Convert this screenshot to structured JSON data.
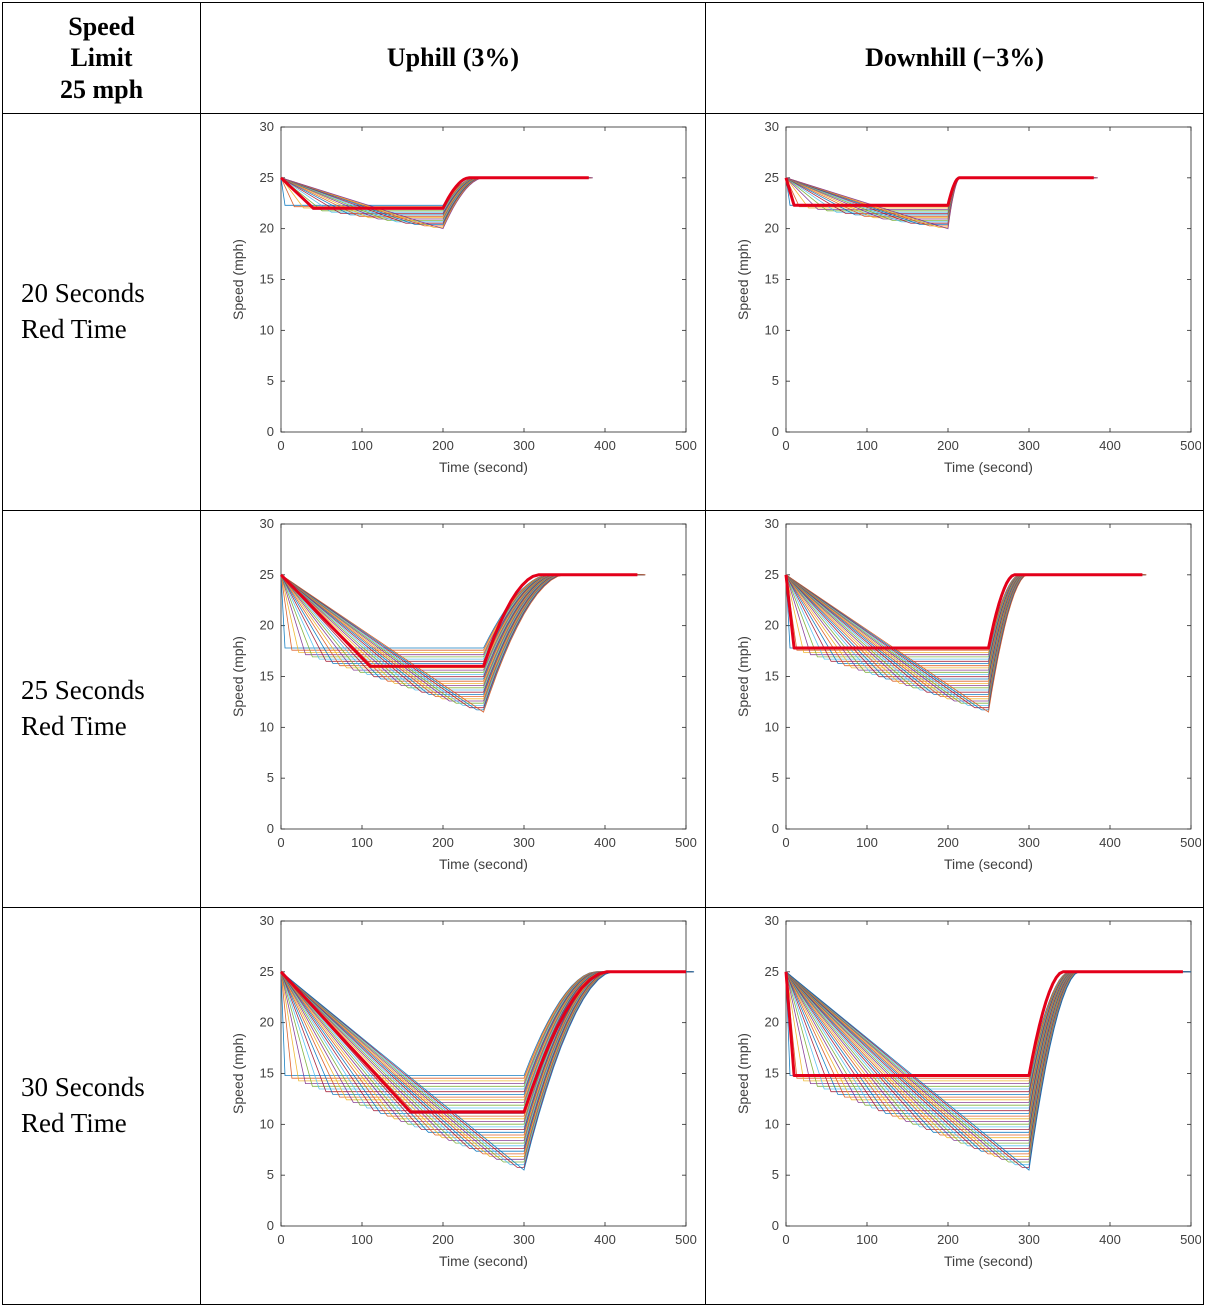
{
  "header": {
    "corner_lines": [
      "Speed",
      "Limit",
      "25 mph"
    ],
    "col_uphill": "Uphill (3%)",
    "col_downhill": "Downhill (−3%)"
  },
  "rows": [
    {
      "label_line1": "20 Seconds",
      "label_line2": "Red Time"
    },
    {
      "label_line1": "25 Seconds",
      "label_line2": "Red Time"
    },
    {
      "label_line1": "30 Seconds",
      "label_line2": "Red Time"
    }
  ],
  "colors": {
    "highlight": "#e3001a",
    "family": [
      "#0072bd",
      "#d95319",
      "#edb120",
      "#7e2f8e",
      "#77ac30",
      "#4dbeee",
      "#a2142f"
    ]
  },
  "chart_data": [
    {
      "id": "r20-up",
      "type": "line",
      "xlabel": "Time (second)",
      "ylabel": "Speed (mph)",
      "xlim": [
        0,
        500
      ],
      "ylim": [
        0,
        30
      ],
      "xticks": [
        0,
        100,
        200,
        300,
        400,
        500
      ],
      "yticks": [
        0,
        5,
        10,
        15,
        20,
        25,
        30
      ],
      "family": {
        "red_start": 200,
        "recover_time": 50,
        "n": 18,
        "low_flat": 22.3,
        "min_at_red": 20,
        "ramp_min_t": 5,
        "ramp_max_t": 200,
        "end_t": 380
      },
      "highlight": {
        "x": [
          0,
          40,
          200,
          232,
          380
        ],
        "y": [
          25,
          22,
          22,
          25,
          25
        ]
      }
    },
    {
      "id": "r20-down",
      "type": "line",
      "xlabel": "Time (second)",
      "ylabel": "Speed (mph)",
      "xlim": [
        0,
        500
      ],
      "ylim": [
        0,
        30
      ],
      "xticks": [
        0,
        100,
        200,
        300,
        400,
        500
      ],
      "yticks": [
        0,
        5,
        10,
        15,
        20,
        25,
        30
      ],
      "family": {
        "red_start": 200,
        "recover_time": 15,
        "n": 18,
        "low_flat": 22.3,
        "min_at_red": 20,
        "ramp_min_t": 5,
        "ramp_max_t": 200,
        "end_t": 380
      },
      "highlight": {
        "x": [
          0,
          10,
          200,
          214,
          380
        ],
        "y": [
          25,
          22.3,
          22.3,
          25,
          25
        ]
      }
    },
    {
      "id": "r25-up",
      "type": "line",
      "xlabel": "Time (second)",
      "ylabel": "Speed (mph)",
      "xlim": [
        0,
        500
      ],
      "ylim": [
        0,
        30
      ],
      "xticks": [
        0,
        100,
        200,
        300,
        400,
        500
      ],
      "yticks": [
        0,
        5,
        10,
        15,
        20,
        25,
        30
      ],
      "family": {
        "red_start": 250,
        "recover_time": 100,
        "n": 30,
        "low_flat": 17.8,
        "min_at_red": 11.5,
        "ramp_min_t": 5,
        "ramp_max_t": 250,
        "end_t": 445
      },
      "highlight": {
        "x": [
          0,
          110,
          250,
          318,
          440
        ],
        "y": [
          25,
          16,
          16,
          25,
          25
        ]
      }
    },
    {
      "id": "r25-down",
      "type": "line",
      "xlabel": "Time (second)",
      "ylabel": "Speed (mph)",
      "xlim": [
        0,
        500
      ],
      "ylim": [
        0,
        30
      ],
      "xticks": [
        0,
        100,
        200,
        300,
        400,
        500
      ],
      "yticks": [
        0,
        5,
        10,
        15,
        20,
        25,
        30
      ],
      "family": {
        "red_start": 250,
        "recover_time": 48,
        "n": 30,
        "low_flat": 17.8,
        "min_at_red": 11.5,
        "ramp_min_t": 5,
        "ramp_max_t": 250,
        "end_t": 440
      },
      "highlight": {
        "x": [
          0,
          10,
          250,
          282,
          440
        ],
        "y": [
          25,
          17.8,
          17.8,
          25,
          25
        ]
      }
    },
    {
      "id": "r30-up",
      "type": "line",
      "xlabel": "Time (second)",
      "ylabel": "Speed (mph)",
      "xlim": [
        0,
        500
      ],
      "ylim": [
        0,
        30
      ],
      "xticks": [
        0,
        100,
        200,
        300,
        400,
        500
      ],
      "yticks": [
        0,
        5,
        10,
        15,
        20,
        25,
        30
      ],
      "family": {
        "red_start": 300,
        "recover_time": 110,
        "n": 36,
        "low_flat": 14.8,
        "min_at_red": 5.5,
        "ramp_min_t": 5,
        "ramp_max_t": 300,
        "end_t": 505
      },
      "highlight": {
        "x": [
          0,
          160,
          300,
          402,
          500
        ],
        "y": [
          25,
          11.2,
          11.2,
          25,
          25
        ]
      }
    },
    {
      "id": "r30-down",
      "type": "line",
      "xlabel": "Time (second)",
      "ylabel": "Speed (mph)",
      "xlim": [
        0,
        500
      ],
      "ylim": [
        0,
        30
      ],
      "xticks": [
        0,
        100,
        200,
        300,
        400,
        500
      ],
      "yticks": [
        0,
        5,
        10,
        15,
        20,
        25,
        30
      ],
      "family": {
        "red_start": 300,
        "recover_time": 62,
        "n": 36,
        "low_flat": 14.8,
        "min_at_red": 5.5,
        "ramp_min_t": 5,
        "ramp_max_t": 300,
        "end_t": 495
      },
      "highlight": {
        "x": [
          0,
          10,
          300,
          342,
          490
        ],
        "y": [
          25,
          14.8,
          14.8,
          25,
          25
        ]
      }
    }
  ]
}
